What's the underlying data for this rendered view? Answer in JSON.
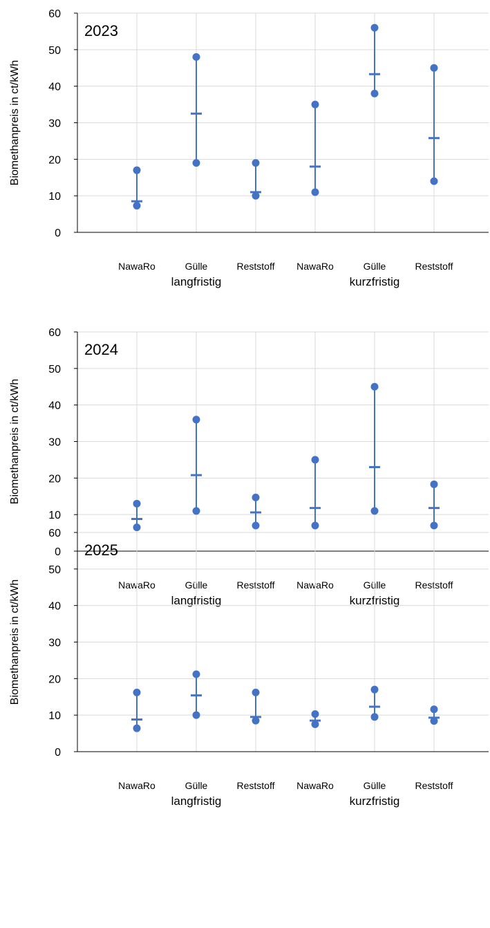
{
  "colors": {
    "series": "#4472C4",
    "grid": "#D9D9D9",
    "axis": "#000000"
  },
  "chart_data": [
    {
      "type": "scatter",
      "title": "2023",
      "ylabel": "Biomethanpreis in ct/kWh",
      "ylim": [
        0,
        60
      ],
      "yticks": [
        0,
        10,
        20,
        30,
        40,
        50,
        60
      ],
      "grid": true,
      "categories": [
        "NawaRo",
        "Gülle",
        "Reststoff",
        "NawaRo",
        "Gülle",
        "Reststoff"
      ],
      "groups": [
        {
          "label": "langfristig",
          "span": [
            0,
            2
          ]
        },
        {
          "label": "kurzfristig",
          "span": [
            3,
            5
          ]
        }
      ],
      "series": [
        {
          "name": "",
          "role": "max",
          "values": [
            17,
            48,
            19,
            35,
            56,
            45
          ]
        },
        {
          "name": "",
          "role": "min",
          "values": [
            7.3,
            19,
            10,
            11,
            38,
            14
          ]
        },
        {
          "name": "",
          "role": "mean",
          "values": [
            8.5,
            32.5,
            11,
            18,
            43.3,
            25.8
          ]
        }
      ]
    },
    {
      "type": "scatter",
      "title": "2024",
      "ylabel": "Biomethanpreis in ct/kWh",
      "ylim": [
        0,
        60
      ],
      "yticks": [
        0,
        10,
        20,
        30,
        40,
        50,
        60
      ],
      "grid": true,
      "categories": [
        "NawaRo",
        "Gülle",
        "Reststoff",
        "NawaRo",
        "Gülle",
        "Reststoff"
      ],
      "groups": [
        {
          "label": "langfristig",
          "span": [
            0,
            2
          ]
        },
        {
          "label": "kurzfristig",
          "span": [
            3,
            5
          ]
        }
      ],
      "series": [
        {
          "name": "",
          "role": "max",
          "values": [
            13,
            36,
            14.7,
            25,
            45,
            18.3
          ]
        },
        {
          "name": "",
          "role": "min",
          "values": [
            6.5,
            11,
            7,
            7,
            11,
            7
          ]
        },
        {
          "name": "",
          "role": "mean",
          "values": [
            8.8,
            20.8,
            10.6,
            11.8,
            23,
            11.8
          ]
        }
      ]
    },
    {
      "type": "scatter",
      "title": "2025",
      "ylabel": "Biomethanpreis in ct/kWh",
      "ylim": [
        0,
        60
      ],
      "yticks": [
        0,
        10,
        20,
        30,
        40,
        50,
        60
      ],
      "grid": true,
      "categories": [
        "NawaRo",
        "Gülle",
        "Reststoff",
        "NawaRo",
        "Gülle",
        "Reststoff"
      ],
      "groups": [
        {
          "label": "langfristig",
          "span": [
            0,
            2
          ]
        },
        {
          "label": "kurzfristig",
          "span": [
            3,
            5
          ]
        }
      ],
      "series": [
        {
          "name": "",
          "role": "max",
          "values": [
            16.2,
            21.2,
            16.2,
            10.3,
            17,
            11.6
          ]
        },
        {
          "name": "",
          "role": "min",
          "values": [
            6.4,
            10,
            8.5,
            7.5,
            9.5,
            8.4
          ]
        },
        {
          "name": "",
          "role": "mean",
          "values": [
            8.8,
            15.4,
            9.5,
            8.5,
            12.3,
            9.3
          ]
        }
      ]
    }
  ]
}
